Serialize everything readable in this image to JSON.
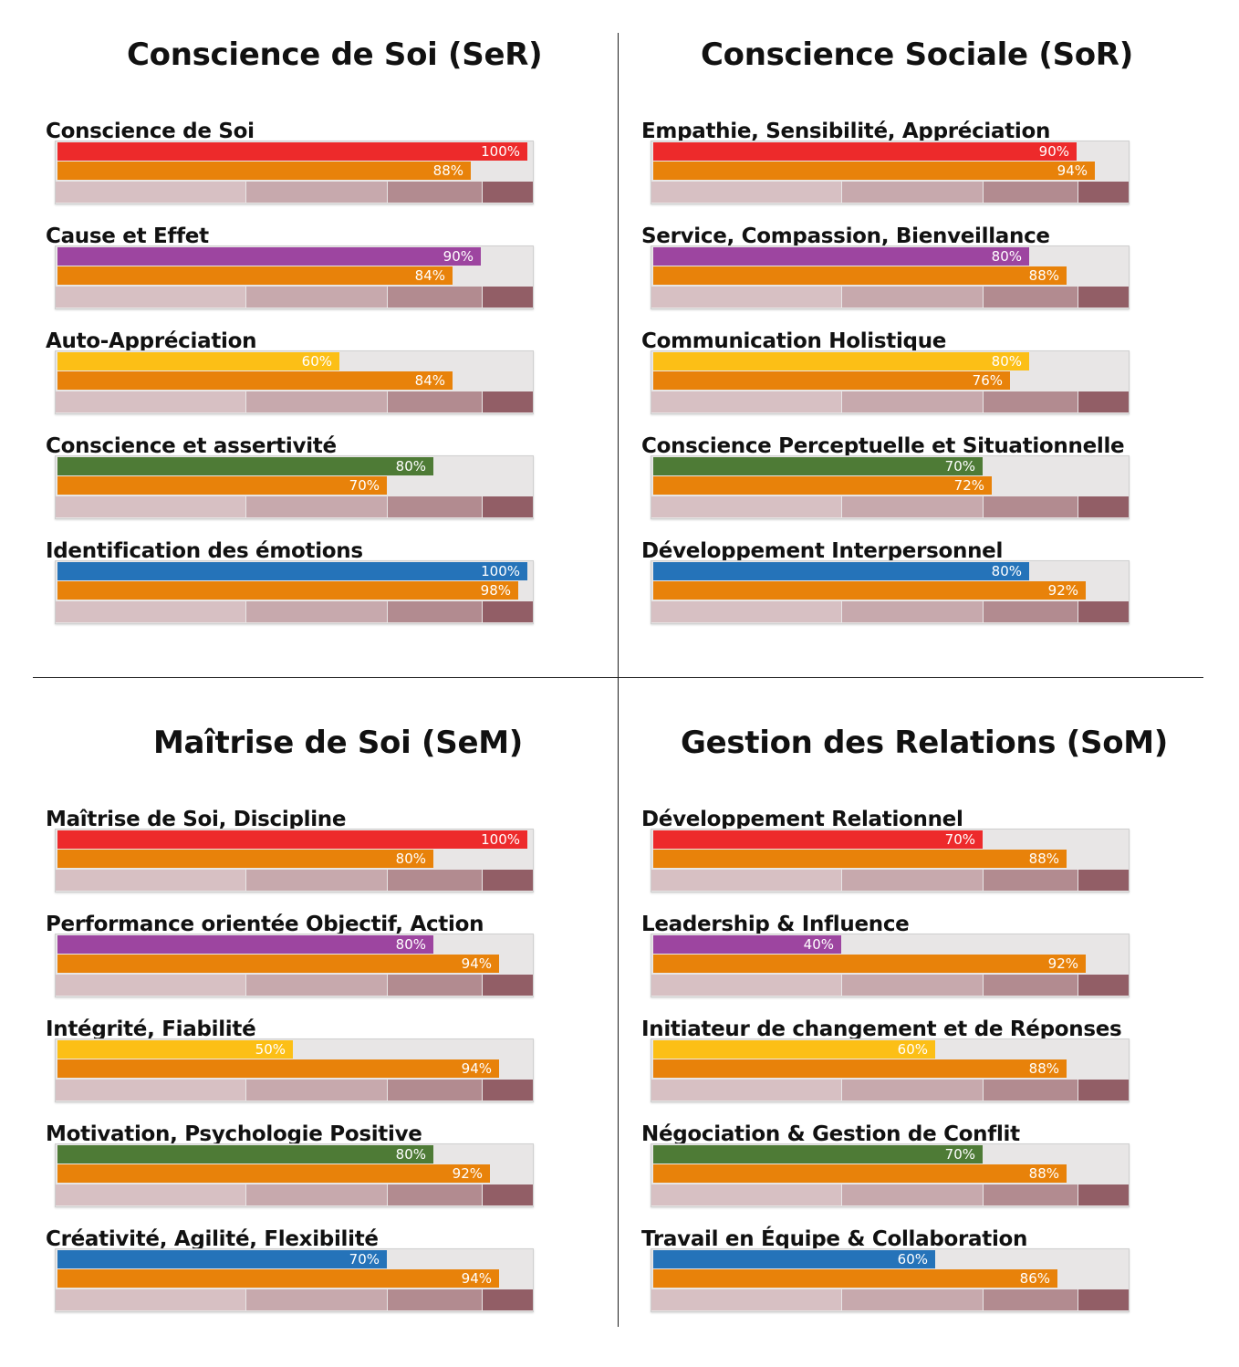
{
  "colors": {
    "red": "#ed2a2b",
    "purple": "#9d45a0",
    "yellow": "#fcbf16",
    "green": "#4e7b36",
    "blue": "#2573b9",
    "orange": "#e8820a"
  },
  "chart_data": [
    {
      "type": "bar",
      "title": "Conscience de Soi (SeR)",
      "categories": [
        "Conscience de Soi",
        "Cause et Effet",
        "Auto-Appréciation",
        "Conscience et assertivité",
        "Identification des émotions"
      ],
      "series": [
        {
          "name": "primary",
          "values": [
            100,
            90,
            60,
            80,
            100
          ],
          "colors": [
            "red",
            "purple",
            "yellow",
            "green",
            "blue"
          ]
        },
        {
          "name": "secondary",
          "values": [
            88,
            84,
            84,
            70,
            98
          ],
          "color": "orange"
        }
      ],
      "ylim": [
        0,
        100
      ],
      "value_suffix": "%"
    },
    {
      "type": "bar",
      "title": "Conscience Sociale (SoR)",
      "categories": [
        "Empathie, Sensibilité, Appréciation",
        "Service, Compassion, Bienveillance",
        "Communication Holistique",
        "Conscience Perceptuelle et Situationnelle",
        "Développement Interpersonnel"
      ],
      "series": [
        {
          "name": "primary",
          "values": [
            90,
            80,
            80,
            70,
            80
          ],
          "colors": [
            "red",
            "purple",
            "yellow",
            "green",
            "blue"
          ]
        },
        {
          "name": "secondary",
          "values": [
            94,
            88,
            76,
            72,
            92
          ],
          "color": "orange"
        }
      ],
      "ylim": [
        0,
        100
      ],
      "value_suffix": "%"
    },
    {
      "type": "bar",
      "title": "Maîtrise de Soi (SeM)",
      "categories": [
        "Maîtrise de Soi, Discipline",
        "Performance orientée Objectif, Action",
        "Intégrité, Fiabilité",
        "Motivation, Psychologie Positive",
        "Créativité, Agilité, Flexibilité"
      ],
      "series": [
        {
          "name": "primary",
          "values": [
            100,
            80,
            50,
            80,
            70
          ],
          "colors": [
            "red",
            "purple",
            "yellow",
            "green",
            "blue"
          ]
        },
        {
          "name": "secondary",
          "values": [
            80,
            94,
            94,
            92,
            94
          ],
          "color": "orange"
        }
      ],
      "ylim": [
        0,
        100
      ],
      "value_suffix": "%"
    },
    {
      "type": "bar",
      "title": "Gestion des Relations (SoM)",
      "categories": [
        "Développement Relationnel",
        "Leadership & Influence",
        "Initiateur de changement et de Réponses",
        "Négociation & Gestion de Conflit",
        "Travail en Équipe & Collaboration"
      ],
      "series": [
        {
          "name": "primary",
          "values": [
            70,
            40,
            60,
            70,
            60
          ],
          "colors": [
            "red",
            "purple",
            "yellow",
            "green",
            "blue"
          ]
        },
        {
          "name": "secondary",
          "values": [
            88,
            92,
            88,
            88,
            86
          ],
          "color": "orange"
        }
      ],
      "ylim": [
        0,
        100
      ],
      "value_suffix": "%"
    }
  ]
}
